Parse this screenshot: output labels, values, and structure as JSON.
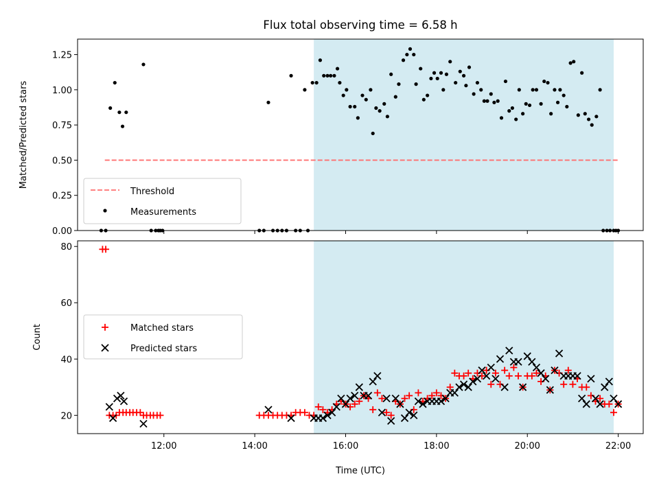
{
  "title": "Flux total observing time = 6.58 h",
  "colors": {
    "shade": "#add8e6",
    "threshold": "#ff6f6f",
    "measurements": "#000000",
    "matched": "#ff0000",
    "predicted": "#000000"
  },
  "chart_data": [
    {
      "type": "scatter",
      "ylabel": "Matched/Predicted stars",
      "xlim": [
        10.1,
        22.55
      ],
      "ylim": [
        0,
        1.36
      ],
      "yticks": [
        0.0,
        0.25,
        0.5,
        0.75,
        1.0,
        1.25
      ],
      "ytick_labels": [
        "0.00",
        "0.25",
        "0.50",
        "0.75",
        "1.00",
        "1.25"
      ],
      "shaded_span": [
        15.3,
        21.9
      ],
      "legend_position": "lower-left",
      "legend": [
        "Threshold",
        "Measurements"
      ],
      "threshold": {
        "name": "Threshold",
        "y": 0.5,
        "x_range": [
          10.7,
          22.0
        ]
      },
      "series": [
        {
          "name": "Measurements",
          "x": [
            10.62,
            10.72,
            10.82,
            10.92,
            11.02,
            11.09,
            11.17,
            11.55,
            11.72,
            11.82,
            11.88,
            11.92,
            11.97,
            14.1,
            14.2,
            14.3,
            14.4,
            14.5,
            14.6,
            14.7,
            14.8,
            14.9,
            15.0,
            15.1,
            15.17,
            15.27,
            15.36,
            15.44,
            15.52,
            15.6,
            15.67,
            15.75,
            15.82,
            15.87,
            15.95,
            16.02,
            16.1,
            16.2,
            16.27,
            16.37,
            16.45,
            16.55,
            16.6,
            16.67,
            16.75,
            16.85,
            16.92,
            17.0,
            17.1,
            17.17,
            17.27,
            17.35,
            17.42,
            17.5,
            17.55,
            17.65,
            17.72,
            17.8,
            17.88,
            17.95,
            18.02,
            18.1,
            18.15,
            18.22,
            18.3,
            18.42,
            18.52,
            18.6,
            18.65,
            18.72,
            18.82,
            18.9,
            18.98,
            19.05,
            19.12,
            19.2,
            19.27,
            19.35,
            19.43,
            19.52,
            19.6,
            19.67,
            19.75,
            19.82,
            19.9,
            19.97,
            20.05,
            20.12,
            20.2,
            20.3,
            20.37,
            20.45,
            20.52,
            20.6,
            20.67,
            20.72,
            20.8,
            20.87,
            20.95,
            21.02,
            21.12,
            21.2,
            21.27,
            21.35,
            21.42,
            21.52,
            21.6,
            21.67,
            21.75,
            21.82,
            21.9,
            21.95,
            22.0
          ],
          "y": [
            0.0,
            0.0,
            0.87,
            1.05,
            0.84,
            0.74,
            0.84,
            1.18,
            0.0,
            0.0,
            0.0,
            0.0,
            0.0,
            0.0,
            0.0,
            0.91,
            0.0,
            0.0,
            0.0,
            0.0,
            1.1,
            0.0,
            0.0,
            1.0,
            0.0,
            1.05,
            1.05,
            1.21,
            1.1,
            1.1,
            1.1,
            1.1,
            1.15,
            1.05,
            0.96,
            1.0,
            0.88,
            0.88,
            0.8,
            0.96,
            0.93,
            1.0,
            0.69,
            0.87,
            0.85,
            0.9,
            0.81,
            1.11,
            0.95,
            1.04,
            1.21,
            1.25,
            1.29,
            1.25,
            1.04,
            1.15,
            0.93,
            0.96,
            1.08,
            1.12,
            1.08,
            1.12,
            1.0,
            1.11,
            1.2,
            1.05,
            1.13,
            1.1,
            1.03,
            1.16,
            0.97,
            1.05,
            1.0,
            0.92,
            0.92,
            0.97,
            0.91,
            0.92,
            0.8,
            1.06,
            0.85,
            0.87,
            0.79,
            1.0,
            0.83,
            0.9,
            0.89,
            1.0,
            1.0,
            0.9,
            1.06,
            1.05,
            0.83,
            1.0,
            0.91,
            1.0,
            0.96,
            0.88,
            1.19,
            1.2,
            0.82,
            1.12,
            0.83,
            0.79,
            0.75,
            0.81,
            1.0,
            0.0,
            0,
            0,
            0,
            0,
            0
          ]
        }
      ]
    },
    {
      "type": "scatter",
      "xlabel": "Time (UTC)",
      "ylabel": "Count",
      "xlim": [
        10.1,
        22.55
      ],
      "ylim": [
        13.5,
        82
      ],
      "yticks": [
        20,
        40,
        60,
        80
      ],
      "ytick_labels": [
        "20",
        "40",
        "60",
        "80"
      ],
      "xticks": [
        12,
        14,
        16,
        18,
        20,
        22
      ],
      "xtick_labels": [
        "12:00",
        "14:00",
        "16:00",
        "18:00",
        "20:00",
        "22:00"
      ],
      "shaded_span": [
        15.3,
        21.9
      ],
      "legend_position": "center-left",
      "legend": [
        "Matched stars",
        "Predicted stars"
      ],
      "series": [
        {
          "name": "Matched stars",
          "x": [
            10.65,
            10.72,
            10.8,
            10.88,
            10.95,
            11.02,
            11.1,
            11.17,
            11.25,
            11.32,
            11.4,
            11.48,
            11.55,
            11.62,
            11.7,
            11.77,
            11.85,
            11.92,
            14.1,
            14.2,
            14.3,
            14.4,
            14.5,
            14.6,
            14.7,
            14.8,
            14.9,
            15.0,
            15.1,
            15.2,
            15.3,
            15.4,
            15.5,
            15.6,
            15.7,
            15.8,
            15.9,
            16.0,
            16.1,
            16.2,
            16.3,
            16.4,
            16.5,
            16.6,
            16.7,
            16.8,
            16.9,
            17.0,
            17.1,
            17.2,
            17.3,
            17.4,
            17.5,
            17.6,
            17.7,
            17.8,
            17.9,
            18.0,
            18.1,
            18.2,
            18.3,
            18.4,
            18.5,
            18.6,
            18.7,
            18.8,
            18.9,
            19.0,
            19.1,
            19.2,
            19.3,
            19.4,
            19.5,
            19.6,
            19.7,
            19.8,
            19.9,
            20.0,
            20.1,
            20.2,
            20.3,
            20.4,
            20.5,
            20.6,
            20.7,
            20.8,
            20.9,
            21.0,
            21.1,
            21.2,
            21.3,
            21.4,
            21.5,
            21.6,
            21.7,
            21.8,
            21.9,
            22.0
          ],
          "y": [
            79,
            79,
            20,
            20,
            20,
            21,
            21,
            21,
            21,
            21,
            21,
            21,
            20,
            20,
            20,
            20,
            20,
            20,
            20,
            20,
            20,
            20,
            20,
            20,
            20,
            20,
            21,
            21,
            21,
            20,
            20,
            23,
            22,
            21,
            22,
            24,
            25,
            24,
            23,
            24,
            25,
            27,
            26,
            22,
            28,
            26,
            21,
            20,
            25,
            24,
            26,
            27,
            22,
            28,
            25,
            26,
            27,
            28,
            27,
            26,
            30,
            35,
            34,
            34,
            35,
            33,
            35,
            34,
            36,
            31,
            35,
            31,
            36,
            34,
            37,
            34,
            30,
            34,
            34,
            35,
            32,
            34,
            29,
            36,
            35,
            31,
            36,
            31,
            33,
            30,
            30,
            27,
            25,
            26,
            24,
            24,
            21,
            24
          ]
        },
        {
          "name": "Predicted stars",
          "x": [
            10.8,
            10.88,
            10.97,
            11.05,
            11.12,
            11.55,
            14.3,
            14.8,
            15.3,
            15.4,
            15.5,
            15.6,
            15.7,
            15.8,
            15.9,
            16.0,
            16.1,
            16.2,
            16.3,
            16.4,
            16.5,
            16.6,
            16.7,
            16.8,
            16.9,
            17.0,
            17.1,
            17.2,
            17.3,
            17.4,
            17.5,
            17.6,
            17.7,
            17.8,
            17.9,
            18.0,
            18.1,
            18.2,
            18.3,
            18.4,
            18.5,
            18.6,
            18.7,
            18.8,
            18.9,
            19.0,
            19.1,
            19.2,
            19.3,
            19.4,
            19.5,
            19.6,
            19.7,
            19.8,
            19.9,
            20.0,
            20.1,
            20.2,
            20.3,
            20.4,
            20.5,
            20.6,
            20.7,
            20.8,
            20.9,
            21.0,
            21.1,
            21.2,
            21.3,
            21.4,
            21.5,
            21.6,
            21.7,
            21.8,
            21.9,
            22.0
          ],
          "y": [
            23,
            19,
            26,
            27,
            25,
            17,
            22,
            19,
            19,
            19,
            19,
            20,
            21,
            23,
            26,
            24,
            26,
            27,
            30,
            27,
            27,
            32,
            34,
            21,
            26,
            18,
            26,
            24,
            19,
            21,
            20,
            25,
            24,
            25,
            25,
            25,
            25,
            26,
            28,
            28,
            30,
            31,
            30,
            32,
            33,
            36,
            34,
            37,
            33,
            40,
            30,
            43,
            39,
            39,
            30,
            41,
            39,
            37,
            35,
            33,
            29,
            36,
            42,
            34,
            34,
            34,
            34,
            26,
            24,
            33,
            26,
            24,
            30,
            32,
            26,
            24
          ]
        }
      ]
    }
  ]
}
